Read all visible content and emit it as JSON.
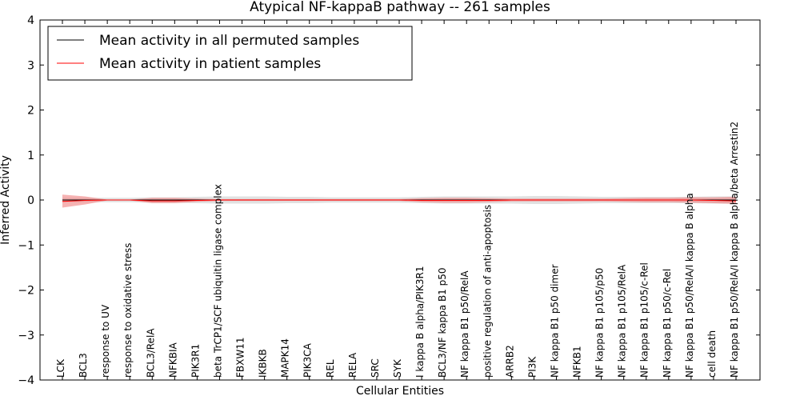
{
  "chart_data": {
    "type": "line",
    "title": "Atypical NF-kappaB pathway -- 261 samples",
    "xlabel": "Cellular Entities",
    "ylabel": "Inferred Activity",
    "ylim": [
      -4,
      4
    ],
    "yticks": [
      -4,
      -3,
      -2,
      -1,
      0,
      1,
      2,
      3,
      4
    ],
    "ytick_labels": [
      "−4",
      "−3",
      "−2",
      "−1",
      "0",
      "1",
      "2",
      "3",
      "4"
    ],
    "grid": false,
    "legend_position": "top-left",
    "categories": [
      "LCK",
      "BCL3",
      "response to UV",
      "response to oxidative stress",
      "BCL3/RelA",
      "NFKBIA",
      "PIK3R1",
      "beta TrCP1/SCF ubiquitin ligase complex",
      "FBXW11",
      "IKBKB",
      "MAPK14",
      "PIK3CA",
      "REL",
      "RELA",
      "SRC",
      "SYK",
      "I kappa B alpha/PIK3R1",
      "BCL3/NF kappa B1 p50",
      "NF kappa B1 p50/RelA",
      "positive regulation of anti-apoptosis",
      "ARRB2",
      "PI3K",
      "NF kappa B1 p50 dimer",
      "NFKB1",
      "NF kappa B1 p105/p50",
      "NF kappa B1 p105/RelA",
      "NF kappa B1 p105/c-Rel",
      "NF kappa B1 p50/c-Rel",
      "NF kappa B1 p50/RelA/I kappa B alpha",
      "cell death",
      "NF kappa B1 p50/RelA/I kappa B alpha/beta Arrestin2"
    ],
    "series": [
      {
        "name": "Mean activity in all permuted samples",
        "color": "#000000",
        "band_color": "#d9d9d9",
        "values": [
          0,
          0,
          0,
          0,
          0,
          0,
          0,
          0,
          0,
          0,
          0,
          0,
          0,
          0,
          0,
          0,
          0,
          0,
          0,
          0,
          0,
          0,
          0,
          0,
          0,
          0,
          0,
          0,
          0,
          0,
          0
        ],
        "lower": [
          -0.05,
          -0.05,
          -0.05,
          -0.05,
          -0.06,
          -0.06,
          -0.07,
          -0.08,
          -0.08,
          -0.08,
          -0.07,
          -0.07,
          -0.06,
          -0.06,
          -0.06,
          -0.06,
          -0.07,
          -0.08,
          -0.08,
          -0.08,
          -0.08,
          -0.09,
          -0.09,
          -0.08,
          -0.07,
          -0.07,
          -0.07,
          -0.07,
          -0.07,
          -0.08,
          -0.08
        ],
        "upper": [
          0.05,
          0.05,
          0.05,
          0.05,
          0.06,
          0.06,
          0.07,
          0.08,
          0.08,
          0.08,
          0.07,
          0.07,
          0.06,
          0.06,
          0.06,
          0.06,
          0.07,
          0.08,
          0.08,
          0.08,
          0.08,
          0.09,
          0.09,
          0.08,
          0.07,
          0.07,
          0.07,
          0.07,
          0.07,
          0.08,
          0.08
        ]
      },
      {
        "name": "Mean activity in patient samples",
        "color": "#ff0000",
        "band_color": "#f08080",
        "values": [
          -0.03,
          -0.01,
          0,
          0,
          -0.02,
          -0.02,
          -0.01,
          0,
          0,
          0,
          0,
          0,
          0,
          0,
          0,
          0,
          -0.01,
          -0.01,
          -0.01,
          -0.01,
          0,
          0,
          0,
          0,
          0,
          0,
          0,
          0,
          0,
          -0.01,
          -0.02
        ],
        "lower": [
          -0.17,
          -0.1,
          -0.01,
          -0.01,
          -0.07,
          -0.07,
          -0.04,
          -0.02,
          -0.02,
          -0.02,
          -0.02,
          -0.02,
          -0.02,
          -0.02,
          -0.02,
          -0.02,
          -0.05,
          -0.06,
          -0.06,
          -0.05,
          -0.03,
          -0.03,
          -0.03,
          -0.03,
          -0.03,
          -0.04,
          -0.05,
          -0.05,
          -0.06,
          -0.07,
          -0.09
        ],
        "upper": [
          0.12,
          0.08,
          0.01,
          0.01,
          0.05,
          0.05,
          0.03,
          0.02,
          0.02,
          0.02,
          0.02,
          0.02,
          0.02,
          0.02,
          0.02,
          0.02,
          0.04,
          0.05,
          0.05,
          0.04,
          0.03,
          0.03,
          0.03,
          0.03,
          0.03,
          0.04,
          0.05,
          0.05,
          0.06,
          0.06,
          0.07
        ]
      }
    ]
  }
}
